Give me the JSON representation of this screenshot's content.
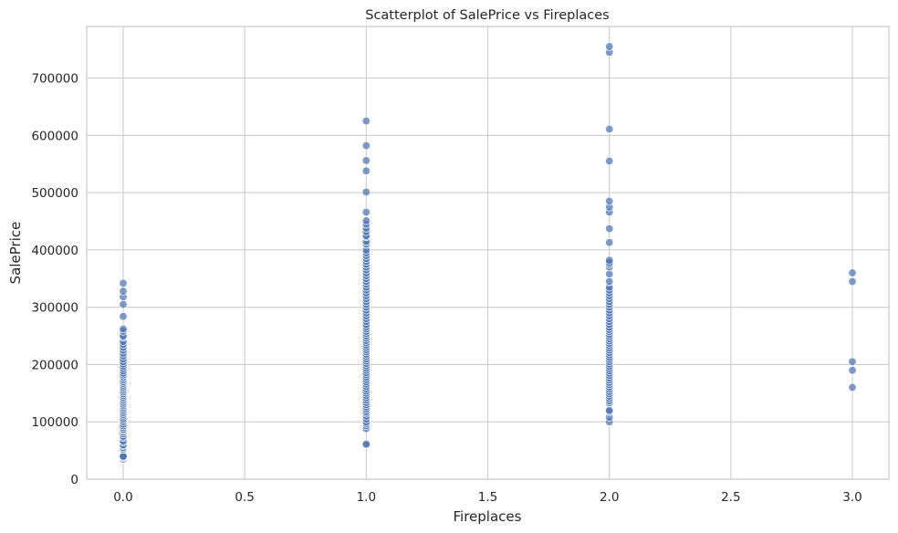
{
  "chart_data": {
    "type": "scatter",
    "title": "Scatterplot of SalePrice vs Fireplaces",
    "xlabel": "Fireplaces",
    "ylabel": "SalePrice",
    "xlim": [
      -0.15,
      3.15
    ],
    "ylim": [
      0,
      790000
    ],
    "xticks": [
      0.0,
      0.5,
      1.0,
      1.5,
      2.0,
      2.5,
      3.0
    ],
    "xtick_labels": [
      "0.0",
      "0.5",
      "1.0",
      "1.5",
      "2.0",
      "2.5",
      "3.0"
    ],
    "yticks": [
      0,
      100000,
      200000,
      300000,
      400000,
      500000,
      600000,
      700000
    ],
    "ytick_labels": [
      "0",
      "100000",
      "200000",
      "300000",
      "400000",
      "500000",
      "600000",
      "700000"
    ],
    "grid": true,
    "marker_color": "#4c72b0",
    "marker_alpha": 0.7,
    "series": [
      {
        "points": [
          [
            0,
            34900
          ],
          [
            0,
            37900
          ],
          [
            0,
            39300
          ],
          [
            0,
            40000
          ],
          [
            0,
            52000
          ],
          [
            0,
            55000
          ],
          [
            0,
            58500
          ],
          [
            0,
            60000
          ],
          [
            0,
            64500
          ],
          [
            0,
            67000
          ],
          [
            0,
            72500
          ],
          [
            0,
            75000
          ],
          [
            0,
            79000
          ],
          [
            0,
            82000
          ],
          [
            0,
            85000
          ],
          [
            0,
            87000
          ],
          [
            0,
            90000
          ],
          [
            0,
            93000
          ],
          [
            0,
            96000
          ],
          [
            0,
            100000
          ],
          [
            0,
            103000
          ],
          [
            0,
            106000
          ],
          [
            0,
            110000
          ],
          [
            0,
            113000
          ],
          [
            0,
            116000
          ],
          [
            0,
            119000
          ],
          [
            0,
            122000
          ],
          [
            0,
            125000
          ],
          [
            0,
            128000
          ],
          [
            0,
            131000
          ],
          [
            0,
            134000
          ],
          [
            0,
            137000
          ],
          [
            0,
            140000
          ],
          [
            0,
            143000
          ],
          [
            0,
            146000
          ],
          [
            0,
            149000
          ],
          [
            0,
            152000
          ],
          [
            0,
            155000
          ],
          [
            0,
            158000
          ],
          [
            0,
            161000
          ],
          [
            0,
            164000
          ],
          [
            0,
            167000
          ],
          [
            0,
            170000
          ],
          [
            0,
            173000
          ],
          [
            0,
            176000
          ],
          [
            0,
            179000
          ],
          [
            0,
            182000
          ],
          [
            0,
            185000
          ],
          [
            0,
            189000
          ],
          [
            0,
            193000
          ],
          [
            0,
            197000
          ],
          [
            0,
            201000
          ],
          [
            0,
            205000
          ],
          [
            0,
            210000
          ],
          [
            0,
            215000
          ],
          [
            0,
            220000
          ],
          [
            0,
            225000
          ],
          [
            0,
            230000
          ],
          [
            0,
            235000
          ],
          [
            0,
            240000
          ],
          [
            0,
            248000
          ],
          [
            0,
            250000
          ],
          [
            0,
            258000
          ],
          [
            0,
            262000
          ],
          [
            0,
            284000
          ],
          [
            0,
            305000
          ],
          [
            0,
            318000
          ],
          [
            0,
            328000
          ],
          [
            0,
            342000
          ],
          [
            1,
            60000
          ],
          [
            1,
            61000
          ],
          [
            1,
            88000
          ],
          [
            1,
            93000
          ],
          [
            1,
            97000
          ],
          [
            1,
            100000
          ],
          [
            1,
            105000
          ],
          [
            1,
            110000
          ],
          [
            1,
            115000
          ],
          [
            1,
            118000
          ],
          [
            1,
            122000
          ],
          [
            1,
            126000
          ],
          [
            1,
            130000
          ],
          [
            1,
            134000
          ],
          [
            1,
            138000
          ],
          [
            1,
            142000
          ],
          [
            1,
            146000
          ],
          [
            1,
            150000
          ],
          [
            1,
            154000
          ],
          [
            1,
            158000
          ],
          [
            1,
            162000
          ],
          [
            1,
            166000
          ],
          [
            1,
            170000
          ],
          [
            1,
            174000
          ],
          [
            1,
            178000
          ],
          [
            1,
            182000
          ],
          [
            1,
            186000
          ],
          [
            1,
            190000
          ],
          [
            1,
            194000
          ],
          [
            1,
            198000
          ],
          [
            1,
            202000
          ],
          [
            1,
            206000
          ],
          [
            1,
            210000
          ],
          [
            1,
            214000
          ],
          [
            1,
            218000
          ],
          [
            1,
            222000
          ],
          [
            1,
            226000
          ],
          [
            1,
            230000
          ],
          [
            1,
            234000
          ],
          [
            1,
            238000
          ],
          [
            1,
            242000
          ],
          [
            1,
            246000
          ],
          [
            1,
            250000
          ],
          [
            1,
            254000
          ],
          [
            1,
            258000
          ],
          [
            1,
            262000
          ],
          [
            1,
            266000
          ],
          [
            1,
            270000
          ],
          [
            1,
            275000
          ],
          [
            1,
            280000
          ],
          [
            1,
            285000
          ],
          [
            1,
            290000
          ],
          [
            1,
            295000
          ],
          [
            1,
            300000
          ],
          [
            1,
            305000
          ],
          [
            1,
            310000
          ],
          [
            1,
            315000
          ],
          [
            1,
            320000
          ],
          [
            1,
            325000
          ],
          [
            1,
            330000
          ],
          [
            1,
            335000
          ],
          [
            1,
            340000
          ],
          [
            1,
            345000
          ],
          [
            1,
            350000
          ],
          [
            1,
            355000
          ],
          [
            1,
            360000
          ],
          [
            1,
            365000
          ],
          [
            1,
            370000
          ],
          [
            1,
            375000
          ],
          [
            1,
            380000
          ],
          [
            1,
            385000
          ],
          [
            1,
            390000
          ],
          [
            1,
            395000
          ],
          [
            1,
            400000
          ],
          [
            1,
            410000
          ],
          [
            1,
            415000
          ],
          [
            1,
            423000
          ],
          [
            1,
            425000
          ],
          [
            1,
            432000
          ],
          [
            1,
            438000
          ],
          [
            1,
            445000
          ],
          [
            1,
            451000
          ],
          [
            1,
            466000
          ],
          [
            1,
            501000
          ],
          [
            1,
            538000
          ],
          [
            1,
            556000
          ],
          [
            1,
            582000
          ],
          [
            1,
            625000
          ],
          [
            2,
            100000
          ],
          [
            2,
            108000
          ],
          [
            2,
            118000
          ],
          [
            2,
            120000
          ],
          [
            2,
            133000
          ],
          [
            2,
            137000
          ],
          [
            2,
            141000
          ],
          [
            2,
            145000
          ],
          [
            2,
            149000
          ],
          [
            2,
            153000
          ],
          [
            2,
            157000
          ],
          [
            2,
            161000
          ],
          [
            2,
            165000
          ],
          [
            2,
            169000
          ],
          [
            2,
            173000
          ],
          [
            2,
            177000
          ],
          [
            2,
            181000
          ],
          [
            2,
            185000
          ],
          [
            2,
            189000
          ],
          [
            2,
            193000
          ],
          [
            2,
            197000
          ],
          [
            2,
            201000
          ],
          [
            2,
            205000
          ],
          [
            2,
            209000
          ],
          [
            2,
            213000
          ],
          [
            2,
            217000
          ],
          [
            2,
            221000
          ],
          [
            2,
            225000
          ],
          [
            2,
            229000
          ],
          [
            2,
            233000
          ],
          [
            2,
            237000
          ],
          [
            2,
            241000
          ],
          [
            2,
            245000
          ],
          [
            2,
            249000
          ],
          [
            2,
            253000
          ],
          [
            2,
            257000
          ],
          [
            2,
            261000
          ],
          [
            2,
            265000
          ],
          [
            2,
            270000
          ],
          [
            2,
            275000
          ],
          [
            2,
            280000
          ],
          [
            2,
            285000
          ],
          [
            2,
            290000
          ],
          [
            2,
            295000
          ],
          [
            2,
            300000
          ],
          [
            2,
            305000
          ],
          [
            2,
            310000
          ],
          [
            2,
            315000
          ],
          [
            2,
            320000
          ],
          [
            2,
            325000
          ],
          [
            2,
            330000
          ],
          [
            2,
            335000
          ],
          [
            2,
            345000
          ],
          [
            2,
            358000
          ],
          [
            2,
            370000
          ],
          [
            2,
            375000
          ],
          [
            2,
            378000
          ],
          [
            2,
            382000
          ],
          [
            2,
            413000
          ],
          [
            2,
            437000
          ],
          [
            2,
            466000
          ],
          [
            2,
            475000
          ],
          [
            2,
            485000
          ],
          [
            2,
            555000
          ],
          [
            2,
            611000
          ],
          [
            2,
            745000
          ],
          [
            2,
            755000
          ],
          [
            3,
            160000
          ],
          [
            3,
            190000
          ],
          [
            3,
            205000
          ],
          [
            3,
            345000
          ],
          [
            3,
            360000
          ]
        ]
      }
    ]
  }
}
